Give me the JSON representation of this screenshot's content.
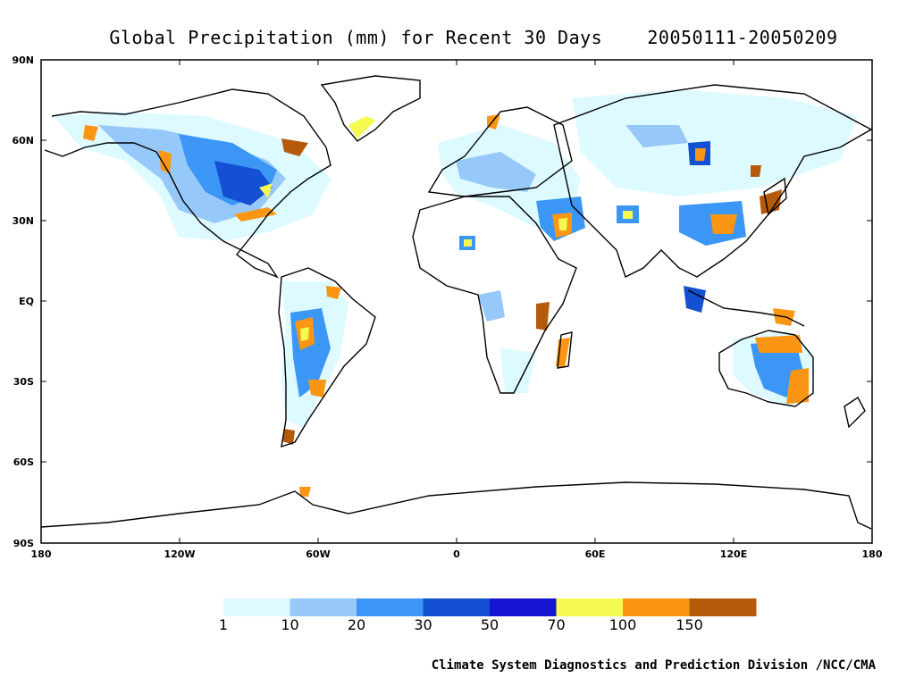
{
  "title": "Global Precipitation (mm) for Recent 30 Days    20050111-20050209",
  "lat_labels": [
    "90N",
    "60N",
    "30N",
    "EQ",
    "30S",
    "60S",
    "90S"
  ],
  "lon_labels": [
    "180",
    "120W",
    "60W",
    "0",
    "60E",
    "120E",
    "180"
  ],
  "legend": {
    "labels": [
      "1",
      "10",
      "20",
      "30",
      "50",
      "70",
      "100",
      "150"
    ],
    "colors": [
      "#dcfaff",
      "#96c8fa",
      "#3c96f5",
      "#1450d2",
      "#1414d2",
      "#f5fa50",
      "#fa9614",
      "#b45a0a"
    ]
  },
  "credit": "Climate System Diagnostics and Prediction Division /NCC/CMA"
}
